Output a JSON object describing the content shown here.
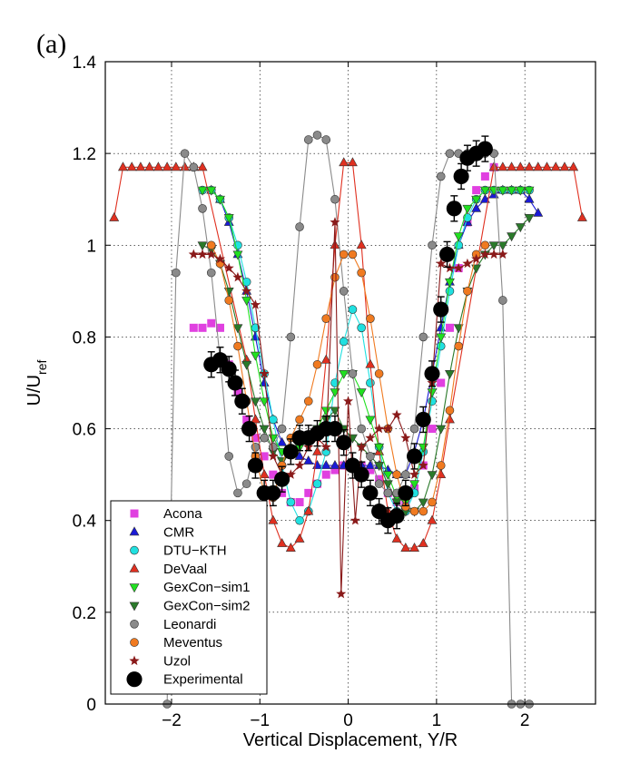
{
  "panel_label": "(a)",
  "chart_data": {
    "type": "scatter",
    "xlabel": "Vertical Displacement, Y/R",
    "ylabel_main": "U/U",
    "ylabel_sub": "ref",
    "xlim": [
      -2.75,
      2.8
    ],
    "ylim": [
      0,
      1.4
    ],
    "xticks": [
      -2,
      -1,
      0,
      1,
      2
    ],
    "xtick_labels": [
      "−2",
      "−1",
      "0",
      "1",
      "2"
    ],
    "yticks": [
      0,
      0.2,
      0.4,
      0.6,
      0.8,
      1,
      1.2,
      1.4
    ],
    "ytick_labels": [
      "0",
      "0.2",
      "0.4",
      "0.6",
      "0.8",
      "1",
      "1.2",
      "1.4"
    ],
    "grid": true,
    "legend_position": "lower-left",
    "series": [
      {
        "name": "Acona",
        "marker": "square",
        "color": "#e040e0",
        "line": false,
        "x": [
          -1.75,
          -1.65,
          -1.55,
          -1.45,
          -1.35,
          -1.25,
          -1.15,
          -1.05,
          -0.95,
          -0.85,
          -0.75,
          -0.65,
          -0.55,
          -0.45,
          -0.35,
          -0.25,
          -0.15,
          -0.05,
          0.05,
          0.15,
          0.25,
          0.35,
          0.45,
          0.55,
          0.65,
          0.75,
          0.85,
          0.95,
          1.05,
          1.15,
          1.25,
          1.35,
          1.45,
          1.55,
          1.65
        ],
        "y": [
          0.82,
          0.82,
          0.83,
          0.82,
          0.74,
          0.68,
          0.62,
          0.58,
          0.54,
          0.5,
          0.46,
          0.44,
          0.44,
          0.46,
          0.48,
          0.5,
          0.51,
          0.52,
          0.52,
          0.52,
          0.51,
          0.49,
          0.46,
          0.44,
          0.44,
          0.47,
          0.52,
          0.6,
          0.7,
          0.82,
          0.95,
          1.05,
          1.12,
          1.15,
          1.17
        ]
      },
      {
        "name": "CMR",
        "marker": "triangle-up",
        "color": "#1a1ad6",
        "line": true,
        "x": [
          -1.55,
          -1.45,
          -1.35,
          -1.25,
          -1.15,
          -1.05,
          -0.95,
          -0.85,
          -0.75,
          -0.65,
          -0.55,
          -0.45,
          -0.35,
          -0.25,
          -0.15,
          -0.05,
          0.05,
          0.15,
          0.25,
          0.35,
          0.45,
          0.55,
          0.65,
          0.75,
          0.85,
          0.95,
          1.05,
          1.15,
          1.25,
          1.35,
          1.45,
          1.55,
          1.65,
          1.75,
          1.85,
          1.95,
          2.05,
          2.15
        ],
        "y": [
          1.12,
          1.1,
          1.05,
          0.98,
          0.9,
          0.8,
          0.7,
          0.62,
          0.57,
          0.55,
          0.54,
          0.53,
          0.52,
          0.52,
          0.52,
          0.52,
          0.52,
          0.52,
          0.52,
          0.52,
          0.51,
          0.5,
          0.5,
          0.55,
          0.62,
          0.72,
          0.82,
          0.92,
          1.0,
          1.05,
          1.08,
          1.1,
          1.11,
          1.12,
          1.12,
          1.12,
          1.1,
          1.07
        ]
      },
      {
        "name": "DTU−KTH",
        "marker": "circle",
        "color": "#20e0e0",
        "line": true,
        "x": [
          -1.65,
          -1.55,
          -1.45,
          -1.35,
          -1.25,
          -1.15,
          -1.05,
          -0.95,
          -0.85,
          -0.75,
          -0.65,
          -0.55,
          -0.45,
          -0.35,
          -0.25,
          -0.15,
          -0.05,
          0.05,
          0.15,
          0.25,
          0.35,
          0.45,
          0.55,
          0.65,
          0.75,
          0.85,
          0.95,
          1.05,
          1.15,
          1.25,
          1.35,
          1.45,
          1.55,
          1.65,
          1.75,
          1.85,
          1.95,
          2.05
        ],
        "y": [
          1.12,
          1.12,
          1.1,
          1.06,
          1.0,
          0.92,
          0.82,
          0.72,
          0.62,
          0.52,
          0.44,
          0.4,
          0.42,
          0.48,
          0.55,
          0.7,
          0.79,
          0.86,
          0.82,
          0.7,
          0.56,
          0.46,
          0.42,
          0.42,
          0.46,
          0.55,
          0.66,
          0.78,
          0.9,
          1.0,
          1.06,
          1.1,
          1.12,
          1.12,
          1.12,
          1.12,
          1.12,
          1.12
        ]
      },
      {
        "name": "DeVaal",
        "marker": "triangle-up",
        "color": "#e03020",
        "line": true,
        "x": [
          -2.65,
          -2.55,
          -2.45,
          -2.35,
          -2.25,
          -2.15,
          -2.05,
          -1.95,
          -1.85,
          -1.75,
          -1.65,
          -1.15,
          -1.05,
          -0.95,
          -0.85,
          -0.75,
          -0.65,
          -0.55,
          -0.45,
          -0.35,
          -0.25,
          -0.15,
          -0.05,
          0.05,
          0.15,
          0.25,
          0.35,
          0.45,
          0.55,
          0.65,
          0.75,
          0.85,
          0.95,
          1.05,
          1.15,
          1.65,
          1.75,
          1.85,
          1.95,
          2.05,
          2.15,
          2.25,
          2.35,
          2.45,
          2.55,
          2.65
        ],
        "y": [
          1.06,
          1.17,
          1.17,
          1.17,
          1.17,
          1.17,
          1.17,
          1.17,
          1.17,
          1.17,
          1.17,
          0.75,
          0.62,
          0.5,
          0.4,
          0.35,
          0.34,
          0.36,
          0.42,
          0.55,
          0.75,
          1.0,
          1.18,
          1.18,
          1.0,
          0.74,
          0.55,
          0.42,
          0.36,
          0.34,
          0.34,
          0.35,
          0.4,
          0.5,
          0.62,
          1.17,
          1.17,
          1.17,
          1.17,
          1.17,
          1.17,
          1.17,
          1.17,
          1.17,
          1.17,
          1.06
        ]
      },
      {
        "name": "GexCon−sim1",
        "marker": "triangle-down",
        "color": "#20e020",
        "line": true,
        "x": [
          -1.65,
          -1.55,
          -1.45,
          -1.35,
          -1.25,
          -1.15,
          -1.05,
          -0.95,
          -0.85,
          -0.75,
          -0.65,
          -0.55,
          -0.45,
          -0.35,
          -0.25,
          -0.15,
          -0.05,
          0.05,
          0.15,
          0.25,
          0.35,
          0.45,
          0.55,
          0.65,
          0.75,
          0.85,
          0.95,
          1.05,
          1.15,
          1.25,
          1.35,
          1.45,
          1.55,
          1.65,
          1.75,
          1.85,
          1.95,
          2.05
        ],
        "y": [
          1.12,
          1.12,
          1.1,
          1.06,
          0.98,
          0.88,
          0.76,
          0.66,
          0.58,
          0.55,
          0.55,
          0.56,
          0.58,
          0.6,
          0.64,
          0.68,
          0.72,
          0.72,
          0.68,
          0.62,
          0.56,
          0.5,
          0.45,
          0.44,
          0.48,
          0.56,
          0.68,
          0.8,
          0.92,
          1.02,
          1.08,
          1.1,
          1.12,
          1.12,
          1.12,
          1.12,
          1.12,
          1.12
        ]
      },
      {
        "name": "GexCon−sim2",
        "marker": "triangle-down",
        "color": "#2a7a2a",
        "line": true,
        "x": [
          -1.65,
          -1.55,
          -1.45,
          -1.35,
          -1.25,
          -1.15,
          -1.05,
          -0.95,
          -0.85,
          -0.75,
          -0.65,
          -0.55,
          -0.45,
          -0.35,
          -0.25,
          -0.15,
          -0.05,
          0.05,
          0.15,
          0.25,
          0.35,
          0.45,
          0.55,
          0.65,
          0.75,
          0.85,
          0.95,
          1.05,
          1.15,
          1.25,
          1.35,
          1.45,
          1.55,
          1.65,
          1.75,
          1.85,
          1.95,
          2.05
        ],
        "y": [
          1.0,
          0.99,
          0.96,
          0.9,
          0.82,
          0.74,
          0.66,
          0.6,
          0.55,
          0.53,
          0.55,
          0.57,
          0.58,
          0.6,
          0.62,
          0.64,
          0.6,
          0.58,
          0.56,
          0.54,
          0.52,
          0.48,
          0.44,
          0.42,
          0.42,
          0.44,
          0.5,
          0.6,
          0.72,
          0.82,
          0.9,
          0.95,
          0.98,
          1.0,
          1.0,
          1.02,
          1.04,
          1.06
        ]
      },
      {
        "name": "Leonardi",
        "marker": "circle",
        "color": "#8a8a8a",
        "line": true,
        "x": [
          -2.05,
          -1.95,
          -1.85,
          -1.75,
          -1.65,
          -1.55,
          -1.45,
          -1.35,
          -1.25,
          -1.15,
          -1.05,
          -0.95,
          -0.85,
          -0.75,
          -0.65,
          -0.55,
          -0.45,
          -0.35,
          -0.25,
          -0.15,
          -0.05,
          0.05,
          0.15,
          0.25,
          0.35,
          0.45,
          0.55,
          0.65,
          0.75,
          0.85,
          0.95,
          1.05,
          1.15,
          1.25,
          1.35,
          1.45,
          1.55,
          1.65,
          1.75,
          1.85,
          1.95,
          2.05
        ],
        "y": [
          0.0,
          0.94,
          1.2,
          1.17,
          1.08,
          0.94,
          0.75,
          0.54,
          0.46,
          0.48,
          0.56,
          0.58,
          0.56,
          0.6,
          0.8,
          1.04,
          1.23,
          1.24,
          1.23,
          1.1,
          0.9,
          0.72,
          0.6,
          0.54,
          0.48,
          0.46,
          0.46,
          0.5,
          0.6,
          0.8,
          1.0,
          1.15,
          1.2,
          1.2,
          1.2,
          1.2,
          1.2,
          1.2,
          0.88,
          0.0,
          0.0,
          0.0
        ]
      },
      {
        "name": "Meventus",
        "marker": "circle",
        "color": "#f07a20",
        "line": true,
        "x": [
          -1.55,
          -1.45,
          -1.35,
          -1.25,
          -1.15,
          -1.05,
          -0.95,
          -0.85,
          -0.75,
          -0.65,
          -0.55,
          -0.45,
          -0.35,
          -0.25,
          -0.15,
          -0.05,
          0.05,
          0.15,
          0.25,
          0.35,
          0.45,
          0.55,
          0.65,
          0.75,
          0.85,
          0.95,
          1.05,
          1.15,
          1.25,
          1.35,
          1.45,
          1.55
        ],
        "y": [
          1.0,
          0.96,
          0.88,
          0.78,
          0.66,
          0.54,
          0.46,
          0.45,
          0.52,
          0.58,
          0.62,
          0.66,
          0.74,
          0.84,
          0.93,
          0.98,
          0.98,
          0.94,
          0.84,
          0.72,
          0.6,
          0.5,
          0.43,
          0.42,
          0.42,
          0.44,
          0.52,
          0.64,
          0.78,
          0.9,
          0.98,
          1.0
        ]
      },
      {
        "name": "Uzol",
        "marker": "star",
        "color": "#8a1a1a",
        "line": true,
        "x": [
          -1.75,
          -1.65,
          -1.55,
          -1.45,
          -1.35,
          -1.25,
          -1.15,
          -1.05,
          -0.95,
          -0.85,
          -0.75,
          -0.65,
          -0.55,
          -0.45,
          -0.35,
          -0.25,
          -0.15,
          -0.08,
          0.0,
          0.08,
          0.15,
          0.25,
          0.35,
          0.45,
          0.55,
          0.65,
          0.75,
          0.85,
          0.95,
          1.05,
          1.15,
          1.25,
          1.35,
          1.45,
          1.55,
          1.65,
          1.75
        ],
        "y": [
          0.98,
          0.98,
          0.98,
          0.97,
          0.95,
          0.93,
          0.9,
          0.87,
          0.72,
          0.54,
          0.5,
          0.5,
          0.52,
          0.56,
          0.58,
          0.56,
          1.05,
          0.24,
          0.66,
          0.4,
          0.56,
          0.58,
          0.6,
          0.6,
          0.63,
          0.58,
          0.5,
          0.52,
          0.7,
          0.96,
          0.95,
          0.95,
          0.96,
          0.97,
          0.98,
          0.98,
          0.98
        ]
      },
      {
        "name": "Experimental",
        "marker": "circle-large",
        "color": "#000000",
        "line": false,
        "x": [
          -1.55,
          -1.45,
          -1.35,
          -1.28,
          -1.2,
          -1.12,
          -1.05,
          -0.95,
          -0.85,
          -0.75,
          -0.65,
          -0.55,
          -0.45,
          -0.35,
          -0.25,
          -0.15,
          -0.05,
          0.05,
          0.15,
          0.25,
          0.35,
          0.45,
          0.55,
          0.65,
          0.75,
          0.85,
          0.95,
          1.05,
          1.12,
          1.2,
          1.28,
          1.35,
          1.45,
          1.55
        ],
        "y": [
          0.74,
          0.75,
          0.73,
          0.7,
          0.66,
          0.6,
          0.52,
          0.46,
          0.46,
          0.49,
          0.55,
          0.58,
          0.58,
          0.59,
          0.6,
          0.6,
          0.57,
          0.52,
          0.5,
          0.46,
          0.42,
          0.4,
          0.41,
          0.46,
          0.54,
          0.62,
          0.72,
          0.86,
          0.98,
          1.08,
          1.15,
          1.19,
          1.2,
          1.21
        ]
      }
    ]
  }
}
